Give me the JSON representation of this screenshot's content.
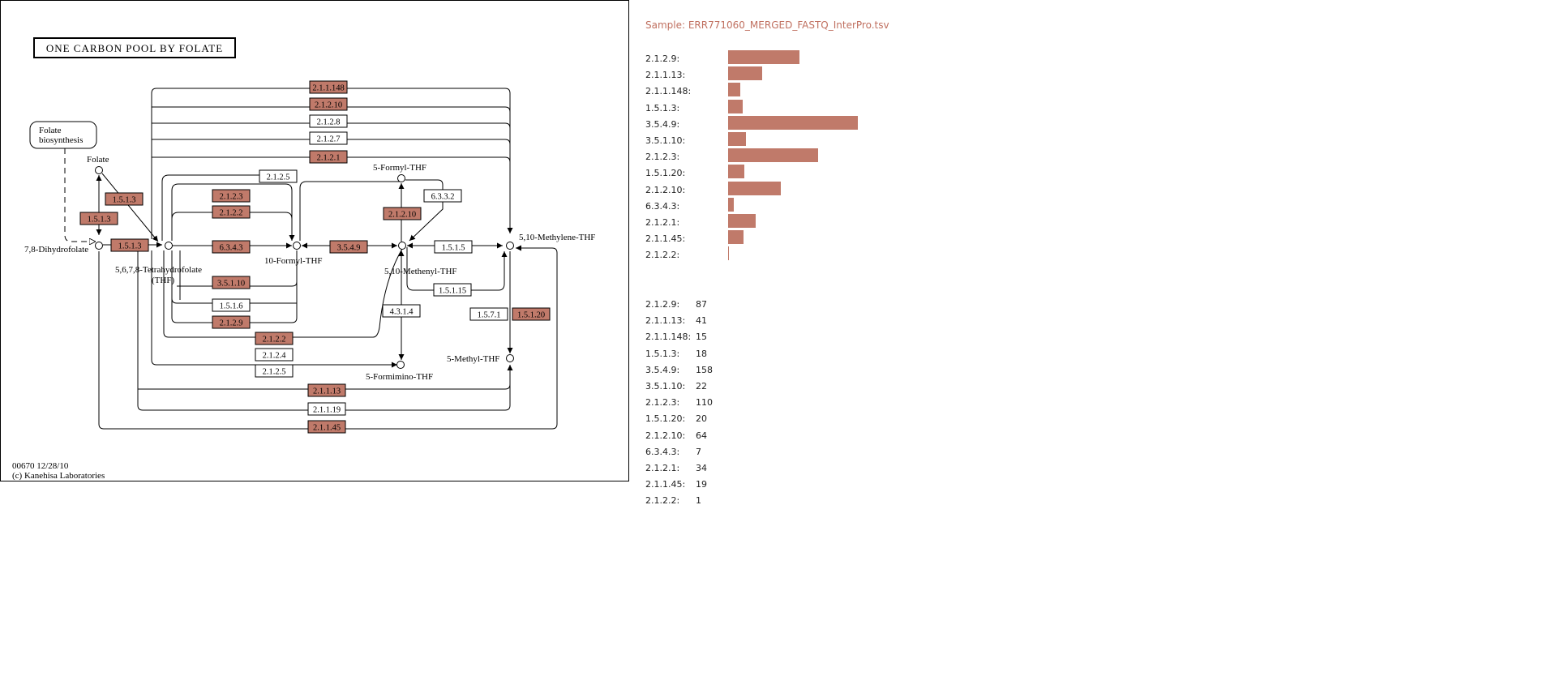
{
  "map": {
    "title": "ONE CARBON POOL BY FOLATE",
    "footer_id": "00670 12/28/10",
    "footer_copy": "(c) Kanehisa Laboratories",
    "colors": {
      "found": "#c07a6a",
      "not_found": "#ffffff",
      "edge": "#000000"
    },
    "compounds": {
      "folate_bio_1": "Folate",
      "folate_bio_2": "biosynthesis",
      "folate": "Folate",
      "dhf": "7,8-Dihydrofolate",
      "thf_1": "5,6,7,8-Tetrahydrofolate",
      "thf_2": "(THF)",
      "formyl10": "10-Formyl-THF",
      "formyl5": "5-Formyl-THF",
      "methenyl": "5,10-Methenyl-THF",
      "methylene": "5,10-Methylene-THF",
      "methyl5": "5-Methyl-THF",
      "formimino": "5-Formimino-THF"
    },
    "enzymes": [
      {
        "label": "2.1.1.148",
        "found": true
      },
      {
        "label": "2.1.2.10",
        "found": true
      },
      {
        "label": "2.1.2.8",
        "found": false
      },
      {
        "label": "2.1.2.7",
        "found": false
      },
      {
        "label": "2.1.2.1",
        "found": true
      },
      {
        "label": "2.1.2.5",
        "found": false
      },
      {
        "label": "1.5.1.3",
        "found": true
      },
      {
        "label": "1.5.1.3",
        "found": true
      },
      {
        "label": "1.5.1.3",
        "found": true
      },
      {
        "label": "2.1.2.3",
        "found": true
      },
      {
        "label": "2.1.2.2",
        "found": true
      },
      {
        "label": "6.3.4.3",
        "found": true
      },
      {
        "label": "3.5.4.9",
        "found": true
      },
      {
        "label": "2.1.2.10",
        "found": true
      },
      {
        "label": "6.3.3.2",
        "found": false
      },
      {
        "label": "1.5.1.5",
        "found": false
      },
      {
        "label": "1.5.1.15",
        "found": false
      },
      {
        "label": "3.5.1.10",
        "found": true
      },
      {
        "label": "1.5.1.6",
        "found": false
      },
      {
        "label": "2.1.2.9",
        "found": true
      },
      {
        "label": "4.3.1.4",
        "found": false
      },
      {
        "label": "1.5.7.1",
        "found": false
      },
      {
        "label": "1.5.1.20",
        "found": true
      },
      {
        "label": "2.1.2.2",
        "found": true
      },
      {
        "label": "2.1.2.4",
        "found": false
      },
      {
        "label": "2.1.2.5",
        "found": false
      },
      {
        "label": "2.1.1.13",
        "found": true
      },
      {
        "label": "2.1.1.19",
        "found": false
      },
      {
        "label": "2.1.1.45",
        "found": true
      }
    ]
  },
  "sample": {
    "title": "Sample: ERR771060_MERGED_FASTQ_InterPro.tsv"
  },
  "bar_color": "#c07a6a",
  "chart_data": {
    "type": "bar",
    "orientation": "horizontal",
    "categories": [
      "2.1.2.9:",
      "2.1.1.13:",
      "2.1.1.148:",
      "1.5.1.3:",
      "3.5.4.9:",
      "3.5.1.10:",
      "2.1.2.3:",
      "1.5.1.20:",
      "2.1.2.10:",
      "6.3.4.3:",
      "2.1.2.1:",
      "2.1.1.45:",
      "2.1.2.2:"
    ],
    "values": [
      87,
      41,
      15,
      18,
      158,
      22,
      110,
      20,
      64,
      7,
      34,
      19,
      1
    ]
  }
}
